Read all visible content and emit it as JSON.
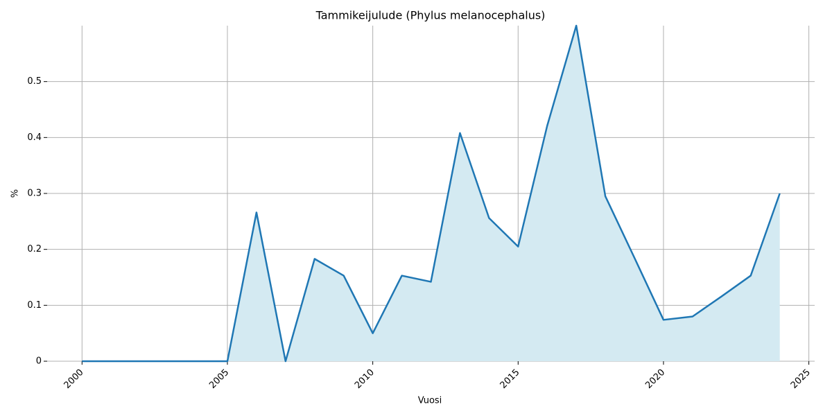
{
  "chart_data": {
    "type": "line",
    "title": "Tammikeijulude (Phylus melanocephalus)",
    "xlabel": "Vuosi",
    "ylabel": "%",
    "x": [
      2000,
      2001,
      2002,
      2003,
      2004,
      2005,
      2006,
      2007,
      2008,
      2009,
      2010,
      2011,
      2012,
      2013,
      2014,
      2015,
      2016,
      2017,
      2018,
      2019,
      2020,
      2021,
      2022,
      2023,
      2024
    ],
    "series": [
      {
        "name": "%",
        "color": "#1f77b4",
        "fill": "#d4eaf2",
        "values": [
          0,
          0,
          0,
          0,
          0,
          0,
          0.266,
          0,
          0.183,
          0.153,
          0.05,
          0.153,
          0.142,
          0.408,
          0.256,
          0.205,
          0.421,
          0.6,
          0.295,
          0.185,
          0.074,
          0.08,
          0.116,
          0.153,
          0.3
        ]
      }
    ],
    "xlim": [
      1998.8,
      2025.2
    ],
    "ylim": [
      0,
      0.6
    ],
    "xticks": [
      2000,
      2005,
      2010,
      2015,
      2020,
      2025
    ],
    "yticks": [
      0,
      0.1,
      0.2,
      0.3,
      0.4,
      0.5
    ],
    "grid": true
  }
}
